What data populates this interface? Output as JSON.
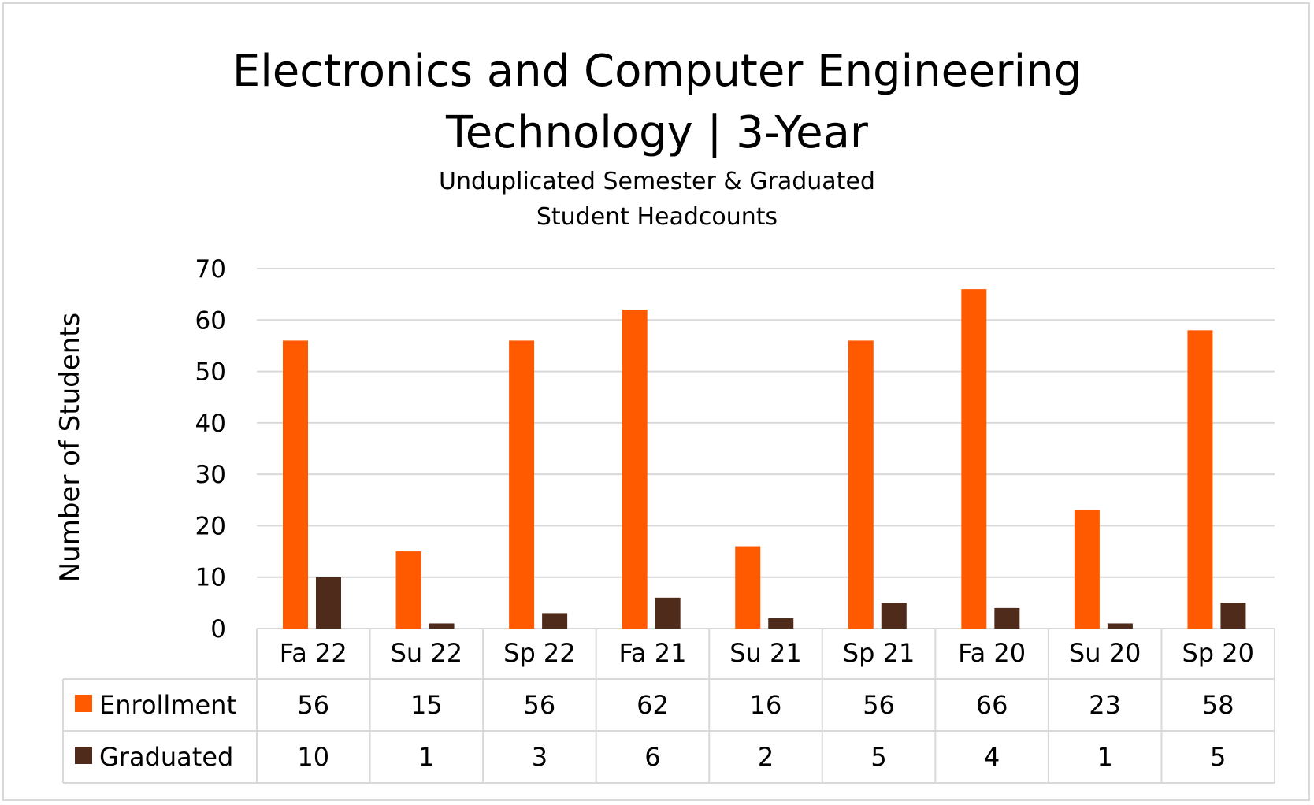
{
  "chart_data": {
    "type": "bar",
    "title": "Electronics and Computer Engineering Technology | 3-Year",
    "title_lines": [
      "Electronics and Computer Engineering",
      "Technology | 3-Year"
    ],
    "subtitle_lines": [
      "Unduplicated Semester & Graduated",
      "Student Headcounts"
    ],
    "ylabel": "Number of Students",
    "ylim": [
      0,
      70
    ],
    "yticks": [
      0,
      10,
      20,
      30,
      40,
      50,
      60,
      70
    ],
    "grid": true,
    "legend": "data-table",
    "categories": [
      "Fa 22",
      "Su 22",
      "Sp 22",
      "Fa 21",
      "Su 21",
      "Sp 21",
      "Fa 20",
      "Su 20",
      "Sp 20"
    ],
    "series": [
      {
        "name": "Enrollment",
        "color": "#ff5a00",
        "values": [
          56,
          15,
          56,
          62,
          16,
          56,
          66,
          23,
          58
        ]
      },
      {
        "name": "Graduated",
        "color": "#4e2b1b",
        "values": [
          10,
          1,
          3,
          6,
          2,
          5,
          4,
          1,
          5
        ]
      }
    ]
  }
}
